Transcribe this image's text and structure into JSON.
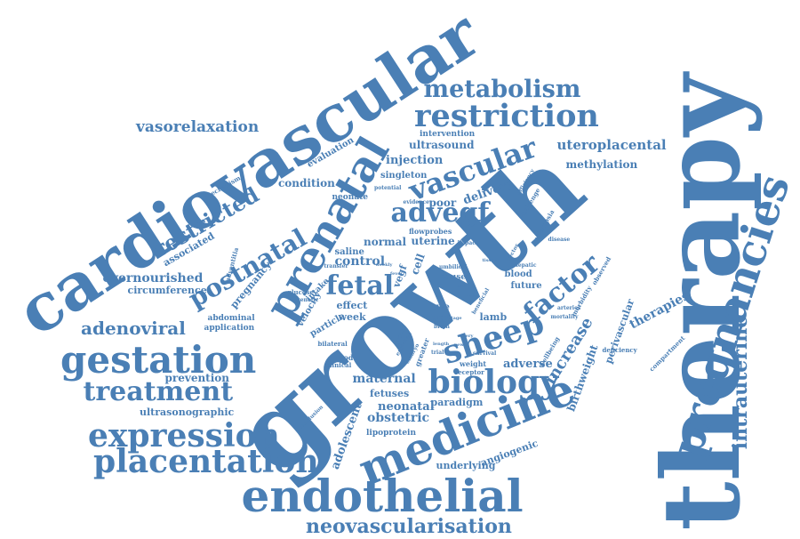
{
  "color": "#4a7fb5",
  "words": [
    "therapy",
    "growth",
    "cardiovascular",
    "endothelial",
    "medicine",
    "pregnancies",
    "prenatal",
    "placentation",
    "expression",
    "gestation",
    "treatment",
    "restriction",
    "biology",
    "sheep",
    "vascular",
    "metabolism",
    "advegf",
    "fetal",
    "factor",
    "postnatal",
    "intrauterine",
    "neovascularisation",
    "restricted",
    "adenoviral",
    "vasorelaxation",
    "overnourished",
    "uteroplacental",
    "increase",
    "therapies",
    "circumference",
    "control",
    "maternal",
    "adverse",
    "obstetric",
    "neonatal",
    "uterine",
    "delivery",
    "injection",
    "methylation",
    "ultrasound",
    "prevention",
    "ultrasonographic",
    "angiogenic",
    "underlying",
    "adolescent",
    "fetuses",
    "lipoprotein",
    "paradigm",
    "birthweight",
    "perivascular",
    "condition",
    "evaluation",
    "associated",
    "pregnancy",
    "intervention",
    "singleton",
    "poor",
    "normal",
    "effect",
    "velocity",
    "particle",
    "week",
    "model",
    "lamb",
    "future",
    "blood",
    "cause",
    "ewe",
    "iugr",
    "cell",
    "vegf",
    "intake",
    "application",
    "abdominal",
    "neonate",
    "saline",
    "flowprobes",
    "mechanism",
    "adventitia",
    "glucose",
    "genetic",
    "bilateral",
    "clinical",
    "trial",
    "survival",
    "weight",
    "receptor",
    "group",
    "brain",
    "greater",
    "wellbeing",
    "morbidity",
    "observed",
    "deficiency",
    "compartment",
    "arteries",
    "mortality",
    "eclampsia",
    "challenge",
    "efficiency",
    "vector",
    "disease",
    "hepatic",
    "potential",
    "evidence",
    "impact",
    "transfer",
    "weekly",
    "fever",
    "tissue",
    "conclusion",
    "umbilical",
    "artery",
    "stage",
    "length",
    "new",
    "embryo",
    "enriched",
    "beneficial",
    "cord",
    "uric",
    "fall"
  ]
}
